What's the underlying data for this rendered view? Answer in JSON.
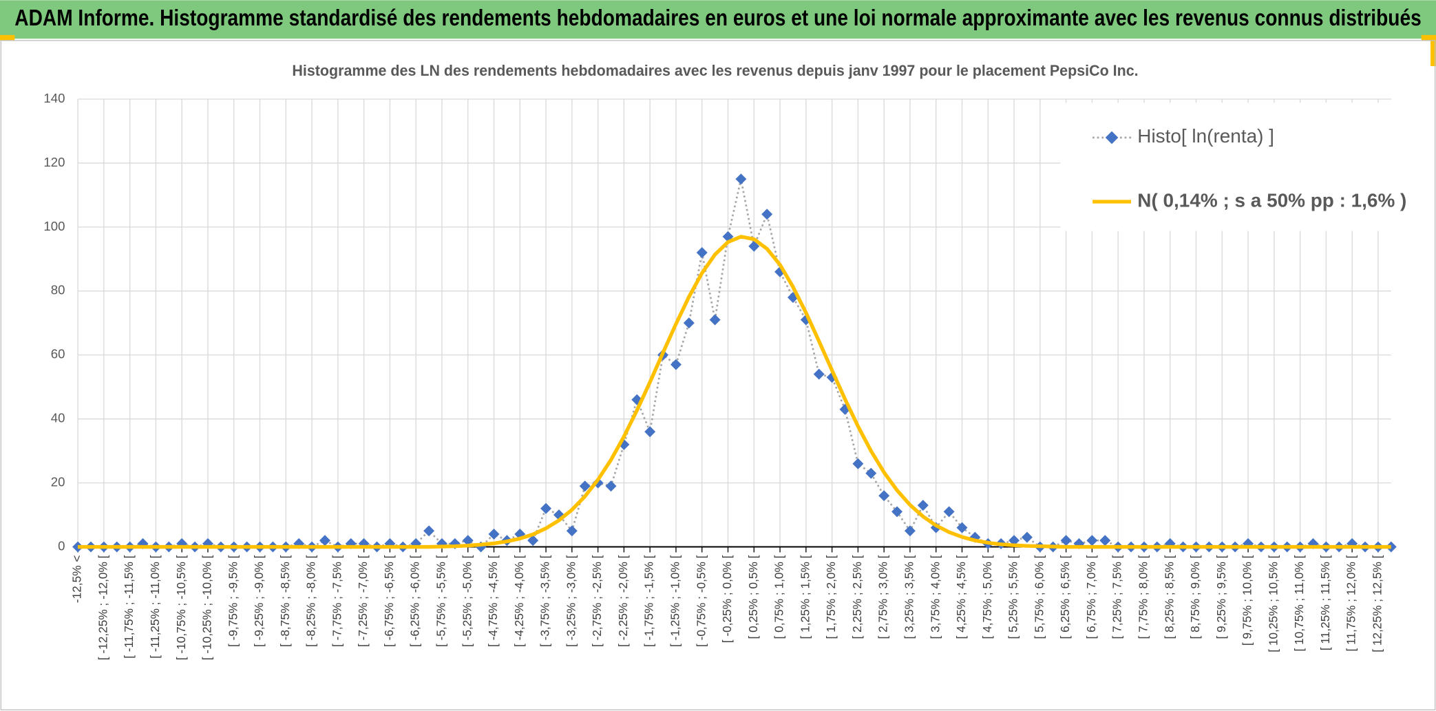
{
  "chart_data": {
    "type": "line",
    "title": "ADAM Informe. Histogramme standardisé des rendements hebdomadaires en euros et une loi normale approximante avec les revenus connus distribués",
    "subtitle": "Histogramme des LN des rendements hebdomadaires avec les revenus depuis janv 1997 pour le placement PepsiCo Inc.",
    "categories": [
      "-12,5% <",
      null,
      "[ -12,25% ; -12,0% [",
      null,
      "[ -11,75% ; -11,5% [",
      null,
      "[ -11,25% ; -11,0% [",
      null,
      "[ -10,75% ; -10,5% [",
      null,
      "[ -10,25% ; -10,0% [",
      null,
      "[ -9,75% ; -9,5% [",
      null,
      "[ -9,25% ; -9,0% [",
      null,
      "[ -8,75% ; -8,5% [",
      null,
      "[ -8,25% ; -8,0% [",
      null,
      "[ -7,75% ; -7,5% [",
      null,
      "[ -7,25% ; -7,0% [",
      null,
      "[ -6,75% ; -6,5% [",
      null,
      "[ -6,25% ; -6,0% [",
      null,
      "[ -5,75% ; -5,5% [",
      null,
      "[ -5,25% ; -5,0% [",
      null,
      "[ -4,75% ; -4,5% [",
      null,
      "[ -4,25% ; -4,0% [",
      null,
      "[ -3,75% ; -3,5% [",
      null,
      "[ -3,25% ; -3,0% [",
      null,
      "[ -2,75% ; -2,5% [",
      null,
      "[ -2,25% ; -2,0% [",
      null,
      "[ -1,75% ; -1,5% [",
      null,
      "[ -1,25% ; -1,0% [",
      null,
      "[ -0,75% ; -0,5% [",
      null,
      "[ -0,25% ; 0,0% [",
      null,
      "[ 0,25% ; 0,5% [",
      null,
      "[ 0,75% ; 1,0% [",
      null,
      "[ 1,25% ; 1,5% [",
      null,
      "[ 1,75% ; 2,0% [",
      null,
      "[ 2,25% ; 2,5% [",
      null,
      "[ 2,75% ; 3,0% [",
      null,
      "[ 3,25% ; 3,5% [",
      null,
      "[ 3,75% ; 4,0% [",
      null,
      "[ 4,25% ; 4,5% [",
      null,
      "[ 4,75% ; 5,0% [",
      null,
      "[ 5,25% ; 5,5% [",
      null,
      "[ 5,75% ; 6,0% [",
      null,
      "[ 6,25% ; 6,5% [",
      null,
      "[ 6,75% ; 7,0% [",
      null,
      "[ 7,25% ; 7,5% [",
      null,
      "[ 7,75% ; 8,0% [",
      null,
      "[ 8,25% ; 8,5% [",
      null,
      "[ 8,75% ; 9,0% [",
      null,
      "[ 9,25% ; 9,5% [",
      null,
      "[ 9,75% ; 10,0% [",
      null,
      "[ 10,25% ; 10,5% [",
      null,
      "[ 10,75% ; 11,0% [",
      null,
      "[ 11,25% ; 11,5% [",
      null,
      "[ 11,75% ; 12,0% [",
      null,
      "[ 12,25% ; 12,5% [",
      null
    ],
    "series": [
      {
        "name": "Histo[ ln(renta) ]",
        "color": "#4472c4",
        "marker": "diamond",
        "line_style": "dotted",
        "line_color": "#a5a5a5",
        "values": [
          0,
          0,
          0,
          0,
          0,
          1,
          0,
          0,
          1,
          0,
          1,
          0,
          0,
          0,
          0,
          0,
          0,
          1,
          0,
          2,
          0,
          1,
          1,
          0,
          1,
          0,
          1,
          5,
          1,
          1,
          2,
          0,
          4,
          2,
          4,
          2,
          12,
          10,
          5,
          19,
          20,
          19,
          32,
          46,
          36,
          60,
          57,
          70,
          92,
          71,
          97,
          115,
          94,
          104,
          86,
          78,
          71,
          54,
          53,
          43,
          26,
          23,
          16,
          11,
          5,
          13,
          6,
          11,
          6,
          3,
          1,
          1,
          2,
          3,
          0,
          0,
          2,
          1,
          2,
          2,
          0,
          0,
          0,
          0,
          1,
          0,
          0,
          0,
          0,
          0,
          1,
          0,
          0,
          0,
          0,
          1,
          0,
          0,
          1,
          0,
          0,
          0
        ]
      },
      {
        "name": "N( 0,14% ; s a 50% pp : 1,6% )",
        "color": "#ffc000",
        "marker": "none",
        "line_style": "solid",
        "values": [
          0,
          0,
          0,
          0,
          0,
          0,
          0,
          0,
          0,
          0,
          0,
          0,
          0,
          0,
          0,
          0,
          0,
          0,
          0,
          0,
          0,
          0,
          0,
          0,
          0,
          0,
          0,
          0,
          0.1,
          0.2,
          0.4,
          0.7,
          1.1,
          1.7,
          2.6,
          3.9,
          5.8,
          8.3,
          11.6,
          15.8,
          21.0,
          27.2,
          34.5,
          42.7,
          51.5,
          60.7,
          69.7,
          78.2,
          85.6,
          91.4,
          95.3,
          97.0,
          96.2,
          93.2,
          88.2,
          81.3,
          73.2,
          64.3,
          55.2,
          46.2,
          37.7,
          30.0,
          23.3,
          17.7,
          13.1,
          9.5,
          6.7,
          4.6,
          3.1,
          2.0,
          1.3,
          0.8,
          0.5,
          0.3,
          0.2,
          0.1,
          0,
          0,
          0,
          0,
          0,
          0,
          0,
          0,
          0,
          0,
          0,
          0,
          0,
          0,
          0,
          0,
          0,
          0,
          0,
          0,
          0,
          0,
          0,
          0,
          0,
          0
        ]
      }
    ],
    "ylim": [
      0,
      140
    ],
    "yticks": [
      0,
      20,
      40,
      60,
      80,
      100,
      120,
      140
    ],
    "grid": true,
    "legend": "top-right"
  }
}
